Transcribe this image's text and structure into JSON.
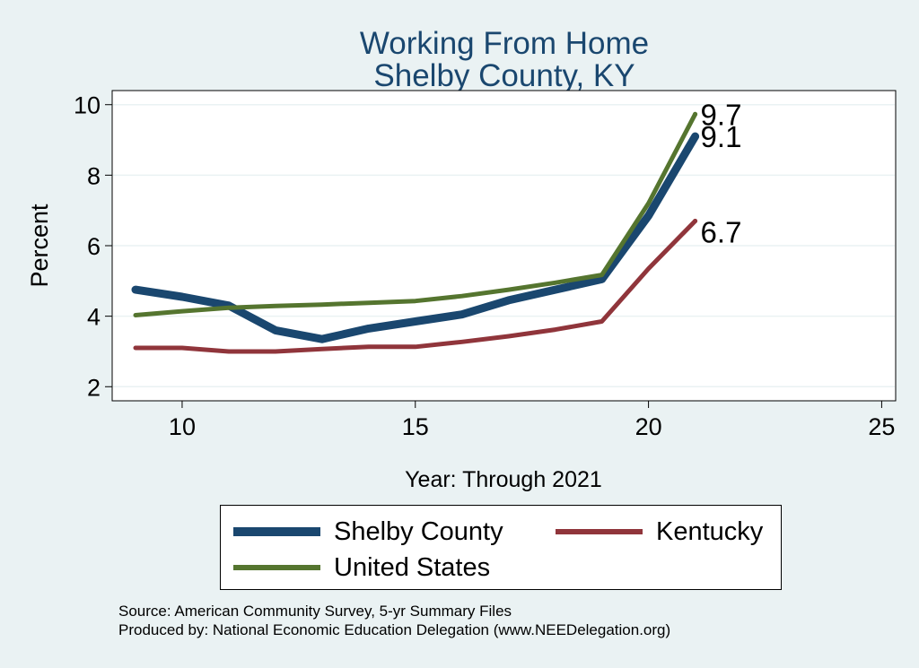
{
  "title": "Working From Home",
  "subtitle": "Shelby County, KY",
  "xlabel": "Year: Through 2021",
  "ylabel": "Percent",
  "source_lines": [
    "Source: American Community Survey, 5-yr Summary Files",
    "Produced by: National Economic Education Delegation (www.NEEDelegation.org)"
  ],
  "colors": {
    "background": "#eaf2f3",
    "plot_background": "#ffffff",
    "grid": "#eaf2f3",
    "title": "#1a476f"
  },
  "chart_data": {
    "type": "line",
    "x": [
      9,
      10,
      11,
      12,
      13,
      14,
      15,
      16,
      17,
      18,
      19,
      20,
      21
    ],
    "xlim": [
      8.5,
      25.3
    ],
    "ylim": [
      1.6,
      10.4
    ],
    "xticks": [
      10,
      15,
      20,
      25
    ],
    "yticks": [
      2,
      4,
      6,
      8,
      10
    ],
    "grid": true,
    "legend_position": "bottom",
    "series": [
      {
        "name": "Shelby County",
        "color": "#1a476f",
        "width": 9,
        "values": [
          4.75,
          4.55,
          4.3,
          3.6,
          3.35,
          3.65,
          3.85,
          4.05,
          4.45,
          4.75,
          5.05,
          6.85,
          9.1
        ],
        "end_label": "9.1"
      },
      {
        "name": "Kentucky",
        "color": "#90353b",
        "width": 5,
        "values": [
          3.1,
          3.1,
          3.0,
          3.0,
          3.07,
          3.13,
          3.13,
          3.27,
          3.43,
          3.62,
          3.85,
          5.35,
          6.7
        ],
        "end_label": "6.7"
      },
      {
        "name": "United States",
        "color": "#55752f",
        "width": 5,
        "values": [
          4.03,
          4.14,
          4.24,
          4.29,
          4.33,
          4.38,
          4.43,
          4.57,
          4.75,
          4.95,
          5.17,
          7.2,
          9.73
        ],
        "end_label": "9.7"
      }
    ]
  }
}
